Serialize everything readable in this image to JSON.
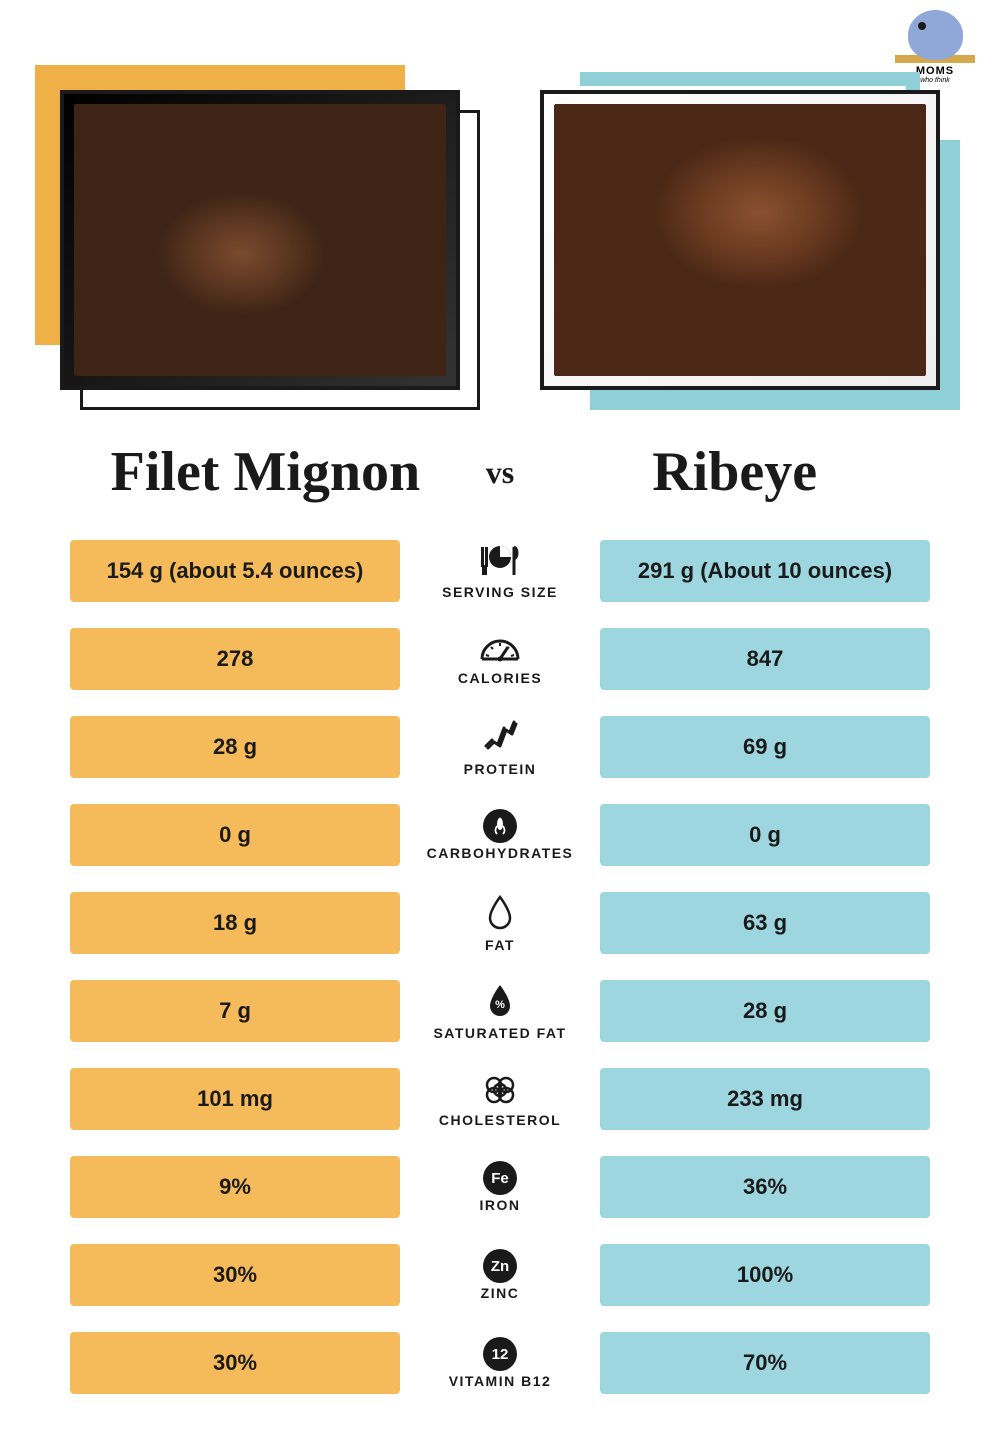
{
  "brand": {
    "name": "MOMS",
    "sub": "who think"
  },
  "left": {
    "title": "Filet Mignon",
    "accent_color": "#f0b048",
    "pill_color": "#f5bb5a"
  },
  "right": {
    "title": "Ribeye",
    "accent_color": "#8fd0d8",
    "pill_color": "#9dd6de"
  },
  "vs_label": "vs",
  "rows": [
    {
      "icon": "serving",
      "label": "SERVING SIZE",
      "left": "154 g (about 5.4 ounces)",
      "right": "291 g (About 10 ounces)"
    },
    {
      "icon": "calories",
      "label": "CALORIES",
      "left": "278",
      "right": "847"
    },
    {
      "icon": "protein",
      "label": "PROTEIN",
      "left": "28 g",
      "right": "69 g"
    },
    {
      "icon": "carbs",
      "label": "CARBOHYDRATES",
      "left": "0 g",
      "right": "0 g"
    },
    {
      "icon": "fat",
      "label": "FAT",
      "left": "18 g",
      "right": "63 g"
    },
    {
      "icon": "satfat",
      "label": "SATURATED FAT",
      "left": "7 g",
      "right": "28 g"
    },
    {
      "icon": "cholesterol",
      "label": "CHOLESTEROL",
      "left": "101 mg",
      "right": "233 mg"
    },
    {
      "icon": "iron",
      "label": "IRON",
      "left": "9%",
      "right": "36%"
    },
    {
      "icon": "zinc",
      "label": "ZINC",
      "left": "30%",
      "right": "100%"
    },
    {
      "icon": "b12",
      "label": "VITAMIN B12",
      "left": "30%",
      "right": "70%"
    }
  ],
  "style": {
    "title_fontsize": 56,
    "vs_fontsize": 32,
    "pill_fontsize": 22,
    "label_fontsize": 14,
    "text_color": "#1a1a1a",
    "background": "#ffffff"
  }
}
